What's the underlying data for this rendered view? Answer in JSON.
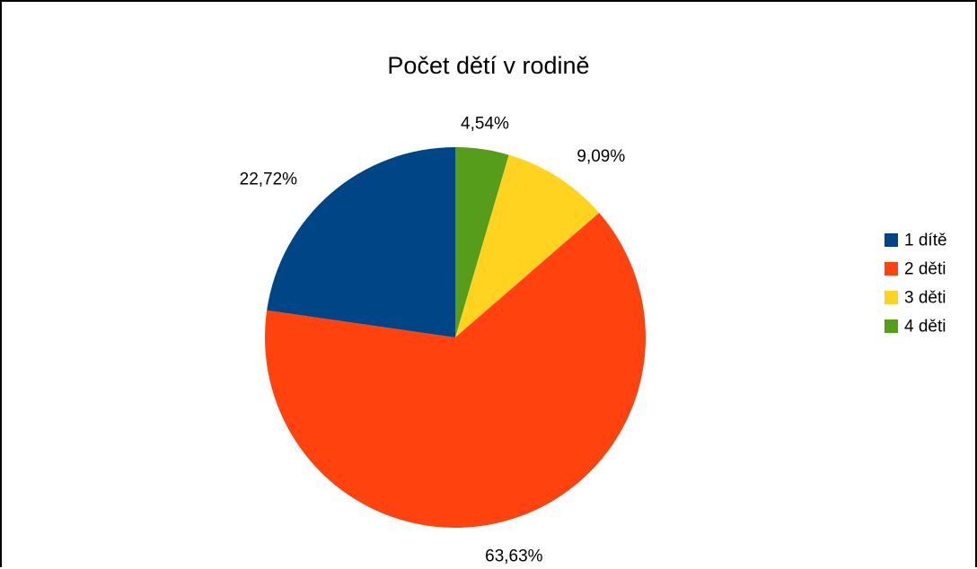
{
  "chart_data": {
    "type": "pie",
    "title": "Počet dětí v rodině",
    "categories": [
      "1 dítě",
      "2 děti",
      "3 děti",
      "4 děti"
    ],
    "values": [
      22.72,
      63.63,
      9.09,
      4.54
    ],
    "labels": [
      "22,72%",
      "63,63%",
      "9,09%",
      "4,54%"
    ],
    "colors": [
      "#004586",
      "#ff420e",
      "#ffd320",
      "#579d1c"
    ],
    "legend_position": "right"
  }
}
